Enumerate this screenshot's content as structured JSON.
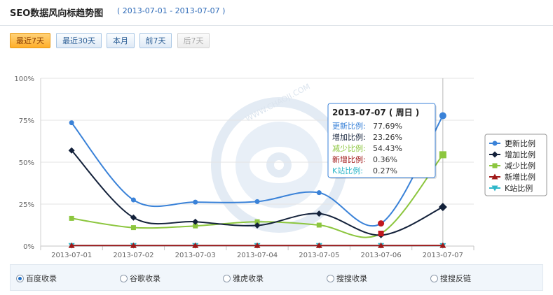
{
  "header": {
    "title": "SEO数据风向标趋势图",
    "range": "( 2013-07-01 - 2013-07-07 )"
  },
  "buttons": [
    {
      "label": "最近7天",
      "state": "active"
    },
    {
      "label": "最近30天",
      "state": "normal"
    },
    {
      "label": "本月",
      "state": "normal"
    },
    {
      "label": "前7天",
      "state": "normal"
    },
    {
      "label": "后7天",
      "state": "disabled"
    }
  ],
  "tooltip": {
    "date": "2013-07-07",
    "weekday": "( 周日 )",
    "rows": [
      {
        "label": "更新比例:",
        "value": "77.69%"
      },
      {
        "label": "增加比例:",
        "value": "23.26%"
      },
      {
        "label": "减少比例:",
        "value": "54.43%"
      },
      {
        "label": "新增比例:",
        "value": "0.36%"
      },
      {
        "label": "K站比例:",
        "value": "0.27%"
      }
    ]
  },
  "chart_data": {
    "type": "line",
    "x": [
      "2013-07-01",
      "2013-07-02",
      "2013-07-03",
      "2013-07-04",
      "2013-07-05",
      "2013-07-06",
      "2013-07-07"
    ],
    "ylim": [
      0,
      100
    ],
    "yticks": [
      "0%",
      "25%",
      "50%",
      "75%",
      "100%"
    ],
    "grid": "horizontal",
    "legend_position": "right",
    "series": [
      {
        "name": "更新比例",
        "color": "#3a82d8",
        "marker": "circle",
        "values": [
          73.5,
          27.5,
          26.2,
          26.5,
          31.8,
          13.5,
          77.69
        ]
      },
      {
        "name": "增加比例",
        "color": "#13213a",
        "marker": "diamond",
        "values": [
          57.0,
          17.0,
          14.5,
          12.3,
          19.3,
          6.5,
          23.26
        ]
      },
      {
        "name": "减少比例",
        "color": "#8cc63e",
        "marker": "square",
        "values": [
          16.5,
          11.0,
          12.0,
          14.5,
          12.5,
          7.5,
          54.43
        ]
      },
      {
        "name": "新增比例",
        "color": "#a01818",
        "marker": "triangle",
        "values": [
          0.3,
          0.3,
          0.3,
          0.3,
          0.3,
          0.3,
          0.36
        ]
      },
      {
        "name": "K站比例",
        "color": "#2fb7c9",
        "marker": "tri-down",
        "values": [
          0.3,
          0.3,
          0.3,
          0.3,
          0.3,
          0.3,
          0.27
        ]
      }
    ]
  },
  "watermark": "WWW.CHAOJI.COM",
  "radios": [
    {
      "label": "百度收录",
      "checked": true
    },
    {
      "label": "谷歌收录",
      "checked": false
    },
    {
      "label": "雅虎收录",
      "checked": false
    },
    {
      "label": "搜搜收录",
      "checked": false
    },
    {
      "label": "搜搜反链",
      "checked": false
    }
  ]
}
